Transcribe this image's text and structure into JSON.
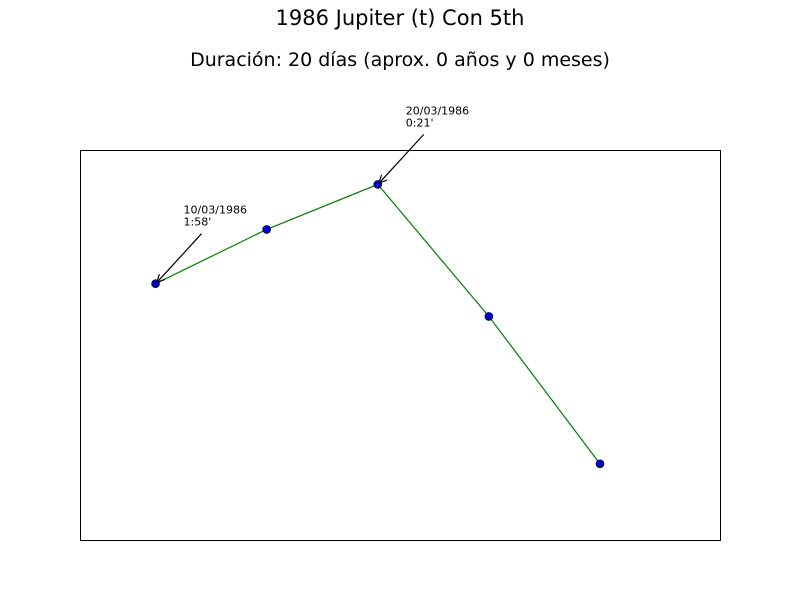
{
  "chart_data": {
    "type": "line",
    "title": "1986 Jupiter (t) Con 5th",
    "subtitle": "Duración: 20 días (aprox. 0 años y 0 meses)",
    "xlabel": "",
    "ylabel": "",
    "grid": false,
    "axes_visible": false,
    "x": [
      0,
      1,
      2,
      3,
      4
    ],
    "y": [
      1.967,
      1.083,
      0.35,
      2.5,
      4.9
    ],
    "y_inverted": true,
    "xlim": [
      -0.68,
      5.08
    ],
    "ylim": [
      -0.21,
      6.14
    ],
    "line_color": "#008000",
    "marker_color": "#0000cc",
    "annotations": [
      {
        "point_index": 0,
        "date": "10/03/1986",
        "value": "1:58'"
      },
      {
        "point_index": 2,
        "date": "20/03/1986",
        "value": "0:21'"
      }
    ]
  }
}
